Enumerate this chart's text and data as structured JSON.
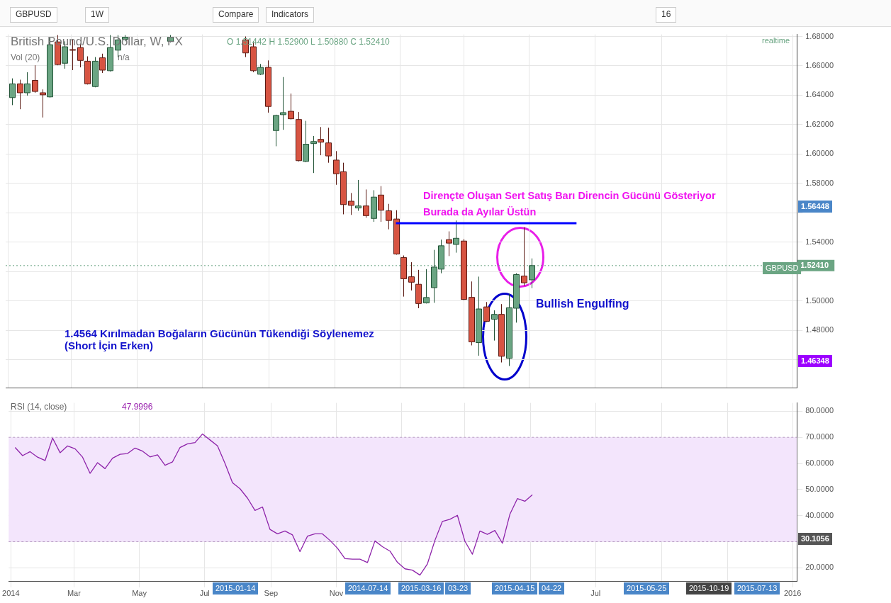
{
  "chart_data": [
    {
      "type": "candlestick",
      "title": "British Pound/U.S. Dollar, W, FX",
      "x": [
        "2014-01-05",
        "2014-01-12",
        "2014-01-19",
        "2014-01-26",
        "2014-02-02",
        "2014-02-09",
        "2014-02-16",
        "2014-02-23",
        "2014-03-02",
        "2014-03-09",
        "2014-03-16",
        "2014-03-23",
        "2014-03-30",
        "2014-04-06",
        "2014-04-13",
        "2014-04-20",
        "2014-06-01",
        "2014-08-10",
        "2014-08-17",
        "2014-08-24",
        "2014-08-31",
        "2014-09-07",
        "2014-09-14",
        "2014-09-21",
        "2014-09-28",
        "2014-10-05",
        "2014-10-12",
        "2014-10-19",
        "2014-10-26",
        "2014-11-02",
        "2014-11-09",
        "2014-11-16",
        "2014-11-23",
        "2014-11-30",
        "2014-12-07",
        "2014-12-14",
        "2014-12-21",
        "2014-12-28",
        "2015-01-04",
        "2015-01-11",
        "2015-01-18",
        "2015-01-25",
        "2015-02-01",
        "2015-02-08",
        "2015-02-15",
        "2015-02-22",
        "2015-03-01",
        "2015-03-08",
        "2015-03-15",
        "2015-03-22",
        "2015-03-29",
        "2015-04-05",
        "2015-04-12",
        "2015-04-19",
        "2015-04-26",
        "2015-05-03"
      ],
      "ohlc": [
        [
          1.6384,
          1.6515,
          1.6333,
          1.6478
        ],
        [
          1.6478,
          1.6506,
          1.6305,
          1.6417
        ],
        [
          1.6417,
          1.6557,
          1.6398,
          1.6478
        ],
        [
          1.6501,
          1.6604,
          1.6417,
          1.6426
        ],
        [
          1.6417,
          1.644,
          1.6249,
          1.6403
        ],
        [
          1.6389,
          1.679,
          1.6384,
          1.6744
        ],
        [
          1.6763,
          1.681,
          1.6604,
          1.6609
        ],
        [
          1.6618,
          1.6767,
          1.6581,
          1.673
        ],
        [
          1.6711,
          1.6781,
          1.6571,
          1.6707
        ],
        [
          1.6725,
          1.6749,
          1.659,
          1.6637
        ],
        [
          1.6632,
          1.6665,
          1.6473,
          1.6478
        ],
        [
          1.6459,
          1.666,
          1.6454,
          1.6632
        ],
        [
          1.6655,
          1.6683,
          1.6552,
          1.6571
        ],
        [
          1.6567,
          1.681,
          1.6562,
          1.6725
        ],
        [
          1.6707,
          1.681,
          1.666,
          1.6777
        ],
        [
          1.6781,
          1.681,
          1.6767,
          1.6795
        ],
        [
          1.6767,
          1.681,
          1.676,
          1.6795
        ],
        [
          1.6777,
          1.68,
          1.666,
          1.6688
        ],
        [
          1.673,
          1.6767,
          1.6557,
          1.6567
        ],
        [
          1.6543,
          1.6613,
          1.6538,
          1.659
        ],
        [
          1.659,
          1.6637,
          1.6282,
          1.6324
        ],
        [
          1.616,
          1.6268,
          1.6053,
          1.6263
        ],
        [
          1.6268,
          1.6524,
          1.6165,
          1.6282
        ],
        [
          1.6291,
          1.6412,
          1.6235,
          1.624
        ],
        [
          1.6235,
          1.6286,
          1.595,
          1.5955
        ],
        [
          1.595,
          1.6226,
          1.5945,
          1.6067
        ],
        [
          1.6071,
          1.6123,
          1.5871,
          1.6085
        ],
        [
          1.61,
          1.6184,
          1.5992,
          1.6081
        ],
        [
          1.6076,
          1.6179,
          1.5941,
          1.5987
        ],
        [
          1.5959,
          1.602,
          1.5791,
          1.5866
        ],
        [
          1.588,
          1.5941,
          1.559,
          1.5656
        ],
        [
          1.5679,
          1.5735,
          1.5586,
          1.5651
        ],
        [
          1.5633,
          1.5824,
          1.5614,
          1.5647
        ],
        [
          1.5647,
          1.5759,
          1.5567,
          1.5581
        ],
        [
          1.5562,
          1.5754,
          1.5539,
          1.5707
        ],
        [
          1.5721,
          1.5782,
          1.5539,
          1.5618
        ],
        [
          1.5614,
          1.5661,
          1.5488,
          1.5548
        ],
        [
          1.5558,
          1.5618,
          1.5315,
          1.532
        ],
        [
          1.5296,
          1.531,
          1.503,
          1.5151
        ],
        [
          1.5165,
          1.5264,
          1.5072,
          1.5128
        ],
        [
          1.5114,
          1.5212,
          1.4951,
          1.4983
        ],
        [
          1.4987,
          1.5217,
          1.4983,
          1.5024
        ],
        [
          1.5091,
          1.5348,
          1.4988,
          1.5231
        ],
        [
          1.5217,
          1.5418,
          1.5189,
          1.5376
        ],
        [
          1.5418,
          1.5474,
          1.5306,
          1.5394
        ],
        [
          1.5385,
          1.5548,
          1.5329,
          1.5427
        ],
        [
          1.5408,
          1.5422,
          1.5006,
          1.5011
        ],
        [
          1.5025,
          1.5133,
          1.4698,
          1.4722
        ],
        [
          1.4717,
          1.5166,
          1.4628,
          1.4946
        ],
        [
          1.496,
          1.4993,
          1.4857,
          1.4862
        ],
        [
          1.4876,
          1.4937,
          1.4731,
          1.4909
        ],
        [
          1.4909,
          1.4979,
          1.4582,
          1.4624
        ],
        [
          1.461,
          1.5049,
          1.4558,
          1.4955
        ],
        [
          1.4951,
          1.5189,
          1.4853,
          1.518
        ],
        [
          1.517,
          1.5502,
          1.5105,
          1.5124
        ],
        [
          1.51442,
          1.529,
          1.5088,
          1.5241
        ]
      ],
      "series": [
        {
          "type": "line",
          "color": "#0000ff",
          "x": [
            "2014-12-28",
            "2015-06-14"
          ],
          "values": [
            1.553,
            1.553
          ]
        }
      ],
      "xlim": [
        "2013-12-30",
        "2016-01-05"
      ],
      "xticks": [
        {
          "value": "2014-01-01",
          "label": null
        },
        {
          "value": "2014-03-01",
          "label": null
        },
        {
          "value": "2014-05-01",
          "label": null
        },
        {
          "value": "2014-07-01",
          "label": null
        },
        {
          "value": "2014-09-01",
          "label": null
        },
        {
          "value": "2014-11-01",
          "label": null
        },
        {
          "value": "2015-01-01",
          "label": null
        },
        {
          "value": "2015-03-01",
          "label": null
        },
        {
          "value": "2015-05-01",
          "label": null
        },
        {
          "value": "2015-07-01",
          "label": null
        },
        {
          "value": "2015-09-01",
          "label": null
        },
        {
          "value": "2015-11-01",
          "label": null
        },
        {
          "value": "2016-01-01",
          "label": null
        }
      ],
      "ylim": [
        1.4409,
        1.6814
      ],
      "yticks": [
        {
          "value": 1.46,
          "label": null
        },
        {
          "value": 1.48,
          "label": "1.48000"
        },
        {
          "value": 1.5,
          "label": "1.50000"
        },
        {
          "value": 1.52,
          "label": null
        },
        {
          "value": 1.54,
          "label": "1.54000"
        },
        {
          "value": 1.56,
          "label": null
        },
        {
          "value": 1.58,
          "label": "1.58000"
        },
        {
          "value": 1.6,
          "label": "1.60000"
        },
        {
          "value": 1.62,
          "label": "1.62000"
        },
        {
          "value": 1.64,
          "label": "1.64000"
        },
        {
          "value": 1.66,
          "label": "1.66000"
        },
        {
          "value": 1.68,
          "label": "1.68000"
        }
      ],
      "ref_lines": [
        {
          "axis": "y",
          "value": 1.5241,
          "label": "1.52410",
          "color": "#6ba583",
          "line_style": "dotted"
        }
      ],
      "annotations": [
        "GBPUSD",
        "1W",
        "Compare",
        "Indicators",
        "16",
        "O 1.51442 H 1.52900 L 1.50880 C 1.52410",
        "Vol (20)",
        "n/a",
        "realtime",
        "Dirençte Oluşan Sert Satış Barı Direncin Gücünü Gösteriyor",
        "Burada da Ayılar Üstün",
        "Bullish Engulfing",
        "1.4564 Kırılmadan Boğaların Gücünün Tükendiği Söylenemez",
        "(Short İçin Erken)",
        "GBPUSD",
        "1.56448",
        "1.46348"
      ],
      "tick_labels": "y",
      "grid": true,
      "legend": false
    },
    {
      "type": "line",
      "title": "RSI (14, close)",
      "x": [
        "2014-01-05",
        "2014-01-12",
        "2014-01-19",
        "2014-01-26",
        "2014-02-02",
        "2014-02-09",
        "2014-02-16",
        "2014-02-23",
        "2014-03-02",
        "2014-03-09",
        "2014-03-16",
        "2014-03-23",
        "2014-03-30",
        "2014-04-06",
        "2014-04-13",
        "2014-04-20",
        "2014-04-27",
        "2014-05-04",
        "2014-05-11",
        "2014-05-18",
        "2014-05-25",
        "2014-06-01",
        "2014-06-08",
        "2014-06-15",
        "2014-06-22",
        "2014-06-29",
        "2014-07-06",
        "2014-07-13",
        "2014-07-20",
        "2014-07-27",
        "2014-08-03",
        "2014-08-10",
        "2014-08-17",
        "2014-08-24",
        "2014-08-31",
        "2014-09-07",
        "2014-09-14",
        "2014-09-21",
        "2014-09-28",
        "2014-10-05",
        "2014-10-12",
        "2014-10-19",
        "2014-10-26",
        "2014-11-02",
        "2014-11-09",
        "2014-11-16",
        "2014-11-23",
        "2014-11-30",
        "2014-12-07",
        "2014-12-14",
        "2014-12-21",
        "2014-12-28",
        "2015-01-04",
        "2015-01-11",
        "2015-01-18",
        "2015-01-25",
        "2015-02-01",
        "2015-02-08",
        "2015-02-15",
        "2015-02-22",
        "2015-03-01",
        "2015-03-08",
        "2015-03-15",
        "2015-03-22",
        "2015-03-29",
        "2015-04-05",
        "2015-04-12",
        "2015-04-19",
        "2015-04-26",
        "2015-05-03"
      ],
      "series": [
        {
          "color": "#8e24aa",
          "values": [
            66.1,
            63.0,
            64.5,
            62.4,
            61.1,
            69.7,
            64.1,
            66.7,
            65.6,
            62.4,
            56.2,
            60.3,
            58.0,
            62.0,
            63.5,
            63.8,
            65.9,
            64.7,
            62.5,
            63.3,
            59.3,
            60.6,
            66.1,
            67.5,
            68.0,
            71.3,
            69.0,
            66.7,
            60.0,
            52.6,
            50.3,
            46.7,
            42.0,
            43.3,
            34.7,
            33.0,
            34.1,
            32.6,
            26.2,
            32.1,
            33.0,
            33.0,
            30.5,
            27.5,
            23.5,
            23.3,
            23.3,
            22.0,
            30.3,
            28.1,
            26.4,
            22.1,
            19.6,
            19.1,
            17.2,
            21.5,
            30.5,
            37.8,
            38.6,
            40.1,
            30.2,
            25.2,
            34.1,
            32.8,
            34.3,
            29.4,
            40.5,
            46.5,
            45.5,
            48.0
          ]
        }
      ],
      "xlim": [
        "2013-12-30",
        "2016-01-05"
      ],
      "xticks": [
        {
          "value": "2014-01-01",
          "label": "2014"
        },
        {
          "value": "2014-03-01",
          "label": "Mar"
        },
        {
          "value": "2014-05-01",
          "label": "May"
        },
        {
          "value": "2014-07-01",
          "label": "Jul"
        },
        {
          "value": "2014-09-01",
          "label": "Sep"
        },
        {
          "value": "2014-11-01",
          "label": "Nov"
        },
        {
          "value": "2015-01-01",
          "label": null
        },
        {
          "value": "2015-03-01",
          "label": null
        },
        {
          "value": "2015-05-01",
          "label": null
        },
        {
          "value": "2015-07-01",
          "label": "Jul"
        },
        {
          "value": "2015-09-01",
          "label": null
        },
        {
          "value": "2015-11-01",
          "label": null
        },
        {
          "value": "2016-01-01",
          "label": "2016"
        }
      ],
      "ylim": [
        14.7,
        83.2
      ],
      "yticks": [
        {
          "value": 20,
          "label": "20.0000"
        },
        {
          "value": 30,
          "label": null
        },
        {
          "value": 40,
          "label": "40.0000"
        },
        {
          "value": 50,
          "label": "50.0000"
        },
        {
          "value": 60,
          "label": "60.0000"
        },
        {
          "value": 70,
          "label": "70.0000"
        },
        {
          "value": 80,
          "label": "80.0000"
        }
      ],
      "bands": [
        {
          "axis": "y",
          "from": 30,
          "to": 70,
          "color": "#f3e5fc"
        }
      ],
      "annotations": [
        "47.9996",
        "30.1056",
        "2015-01-14",
        "2014-07-14",
        "2015-03-16",
        "03-23",
        "2015-04-15",
        "04-22",
        "2015-05-25",
        "2015-10-19",
        "2015-07-13"
      ],
      "grid": true,
      "legend": false,
      "marker": "none",
      "line_style": "solid"
    }
  ]
}
